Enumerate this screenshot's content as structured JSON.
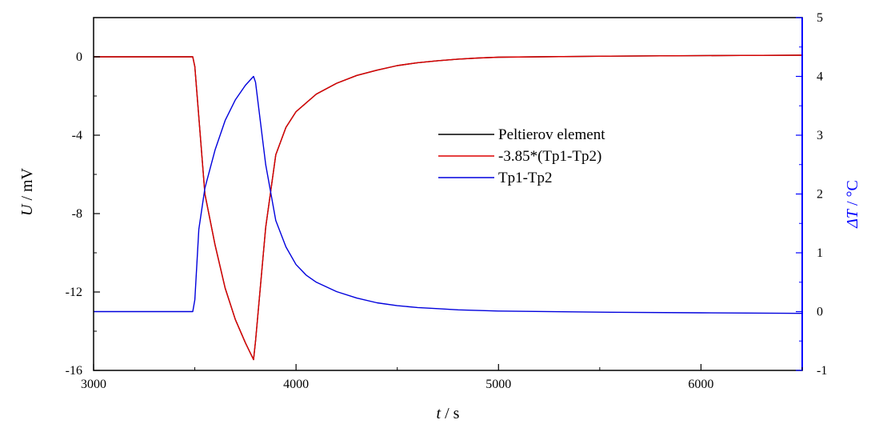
{
  "chart_data": {
    "type": "line",
    "title": "",
    "xlabel": {
      "var": "t",
      "unit": "s"
    },
    "ylabel_left": {
      "var": "U",
      "unit": "mV"
    },
    "ylabel_right": {
      "var": "ΔT",
      "unit": "°C"
    },
    "xlim": [
      3000,
      6500
    ],
    "ylim_left": [
      -16,
      2
    ],
    "ylim_right": [
      -1,
      5
    ],
    "x_ticks": [
      "3000",
      "4000",
      "5000",
      "6000"
    ],
    "y_left_ticks": [
      "0",
      "-4",
      "-8",
      "-12",
      "-16"
    ],
    "y_right_ticks": [
      "5",
      "4",
      "3",
      "2",
      "1",
      "0",
      "-1"
    ],
    "grid": false,
    "legend_position": "center-right",
    "colors": {
      "left_axis": "#000000",
      "right_axis": "#0000ff"
    },
    "series": [
      {
        "name": "Peltierov element",
        "axis": "left",
        "color": "#000000",
        "points": [
          [
            3000,
            0.0
          ],
          [
            3490,
            0.0
          ],
          [
            3500,
            -0.5
          ],
          [
            3550,
            -7.0
          ],
          [
            3600,
            -9.6
          ],
          [
            3650,
            -11.8
          ],
          [
            3700,
            -13.4
          ],
          [
            3750,
            -14.6
          ],
          [
            3790,
            -15.45
          ],
          [
            3800,
            -14.5
          ],
          [
            3850,
            -8.7
          ],
          [
            3900,
            -5.0
          ],
          [
            3950,
            -3.6
          ],
          [
            4000,
            -2.8
          ],
          [
            4100,
            -1.9
          ],
          [
            4200,
            -1.35
          ],
          [
            4300,
            -0.95
          ],
          [
            4400,
            -0.68
          ],
          [
            4500,
            -0.45
          ],
          [
            4600,
            -0.3
          ],
          [
            4700,
            -0.2
          ],
          [
            4800,
            -0.12
          ],
          [
            4900,
            -0.06
          ],
          [
            5000,
            -0.02
          ],
          [
            5200,
            0.0
          ],
          [
            5500,
            0.03
          ],
          [
            5800,
            0.05
          ],
          [
            6200,
            0.07
          ],
          [
            6500,
            0.08
          ]
        ]
      },
      {
        "name": "-3.85*(Tp1-Tp2)",
        "axis": "left",
        "color": "#dd0000",
        "points": [
          [
            3000,
            0.0
          ],
          [
            3490,
            0.0
          ],
          [
            3500,
            -0.5
          ],
          [
            3550,
            -7.0
          ],
          [
            3600,
            -9.6
          ],
          [
            3650,
            -11.8
          ],
          [
            3700,
            -13.4
          ],
          [
            3750,
            -14.6
          ],
          [
            3790,
            -15.45
          ],
          [
            3800,
            -14.5
          ],
          [
            3850,
            -8.7
          ],
          [
            3900,
            -5.0
          ],
          [
            3950,
            -3.6
          ],
          [
            4000,
            -2.8
          ],
          [
            4100,
            -1.9
          ],
          [
            4200,
            -1.35
          ],
          [
            4300,
            -0.95
          ],
          [
            4400,
            -0.68
          ],
          [
            4500,
            -0.45
          ],
          [
            4600,
            -0.3
          ],
          [
            4700,
            -0.2
          ],
          [
            4800,
            -0.12
          ],
          [
            4900,
            -0.06
          ],
          [
            5000,
            -0.02
          ],
          [
            5200,
            0.0
          ],
          [
            5500,
            0.03
          ],
          [
            5800,
            0.05
          ],
          [
            6200,
            0.07
          ],
          [
            6500,
            0.08
          ]
        ]
      },
      {
        "name": "Tp1-Tp2",
        "axis": "right",
        "color": "#0000dd",
        "points": [
          [
            3000,
            0.0
          ],
          [
            3490,
            0.0
          ],
          [
            3500,
            0.2
          ],
          [
            3520,
            1.4
          ],
          [
            3550,
            2.1
          ],
          [
            3600,
            2.75
          ],
          [
            3650,
            3.25
          ],
          [
            3700,
            3.6
          ],
          [
            3750,
            3.85
          ],
          [
            3790,
            4.0
          ],
          [
            3800,
            3.9
          ],
          [
            3850,
            2.5
          ],
          [
            3900,
            1.55
          ],
          [
            3950,
            1.1
          ],
          [
            4000,
            0.8
          ],
          [
            4050,
            0.62
          ],
          [
            4100,
            0.5
          ],
          [
            4200,
            0.34
          ],
          [
            4300,
            0.23
          ],
          [
            4400,
            0.15
          ],
          [
            4500,
            0.1
          ],
          [
            4600,
            0.07
          ],
          [
            4700,
            0.05
          ],
          [
            4800,
            0.03
          ],
          [
            5000,
            0.01
          ],
          [
            5500,
            -0.01
          ],
          [
            6000,
            -0.02
          ],
          [
            6500,
            -0.03
          ]
        ]
      }
    ]
  }
}
